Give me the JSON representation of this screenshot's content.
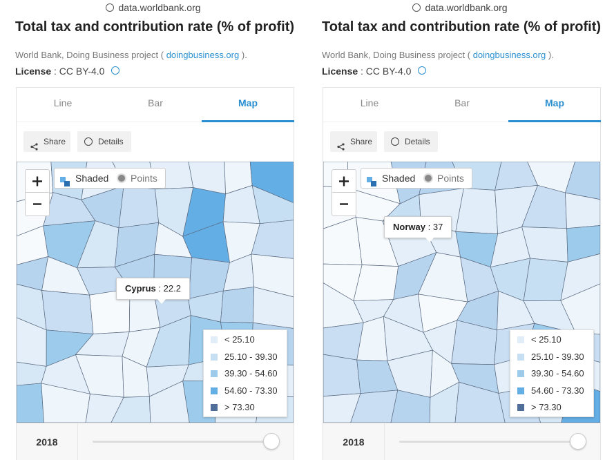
{
  "panels": [
    {
      "url": "data.worldbank.org",
      "title": "Total tax and contribution rate (% of profit)",
      "source_prefix": "World Bank, Doing Business project (",
      "source_link": "doingbusiness.org",
      "source_suffix": ").",
      "license_label": "License",
      "license_value": ": CC BY-4.0",
      "tabs": [
        "Line",
        "Bar",
        "Map"
      ],
      "active_tab": 2,
      "buttons": [
        "Share",
        "Details"
      ],
      "map_modes": [
        "Shaded",
        "Points"
      ],
      "tooltip": {
        "country": "Cyprus",
        "separator": ":",
        "value": 22.2
      },
      "legend": [
        {
          "label": "< 25.10",
          "color": "#e1eef9"
        },
        {
          "label": "25.10 - 39.30",
          "color": "#c6dff3"
        },
        {
          "label": "39.30 - 54.60",
          "color": "#9ccbeb"
        },
        {
          "label": "54.60 - 73.30",
          "color": "#64aee6"
        },
        {
          "label": "> 73.30",
          "color": "#4f6f9a"
        }
      ],
      "year": 2018
    },
    {
      "url": "data.worldbank.org",
      "title": "Total tax and contribution rate (% of profit)",
      "source_prefix": "World Bank, Doing Business project (",
      "source_link": "doingbusiness.org",
      "source_suffix": ").",
      "license_label": "License",
      "license_value": ": CC BY-4.0",
      "tabs": [
        "Line",
        "Bar",
        "Map"
      ],
      "active_tab": 2,
      "buttons": [
        "Share",
        "Details"
      ],
      "map_modes": [
        "Shaded",
        "Points"
      ],
      "tooltip": {
        "country": "Norway",
        "separator": ":",
        "value": 37
      },
      "legend": [
        {
          "label": "< 25.10",
          "color": "#e1eef9"
        },
        {
          "label": "25.10 - 39.30",
          "color": "#c6dff3"
        },
        {
          "label": "39.30 - 54.60",
          "color": "#9ccbeb"
        },
        {
          "label": "54.60 - 73.30",
          "color": "#64aee6"
        },
        {
          "label": "> 73.30",
          "color": "#4f6f9a"
        }
      ],
      "year": 2018
    }
  ]
}
